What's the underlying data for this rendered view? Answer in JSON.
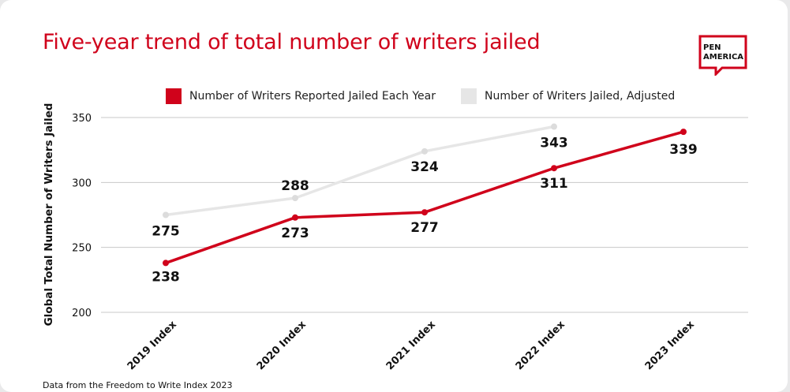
{
  "header": {
    "title": "Five-year trend of total number of writers jailed",
    "logo_text": "PEN\nAMERICA"
  },
  "footer": {
    "source": "Data from the Freedom to Write Index 2023"
  },
  "colors": {
    "reported": "#d0021b",
    "adjusted": "#e6e6e6",
    "grid": "#c8c8c8"
  },
  "chart_data": {
    "type": "line",
    "title": "Five-year trend of total number of writers jailed",
    "ylabel": "Global Total Number of Writers Jailed",
    "xlabel": "",
    "categories": [
      "2019 Index",
      "2020 Index",
      "2021 Index",
      "2022 Index",
      "2023 Index"
    ],
    "ylim": [
      200,
      350
    ],
    "yticks": [
      200,
      250,
      300,
      350
    ],
    "grid": true,
    "legend_position": "top",
    "series": [
      {
        "name": "Number of Writers Reported Jailed Each Year",
        "values": [
          238,
          273,
          277,
          311,
          339
        ],
        "color": "#d0021b"
      },
      {
        "name": "Number of Writers Jailed, Adjusted",
        "values": [
          275,
          288,
          324,
          343,
          null
        ],
        "color": "#e6e6e6"
      }
    ]
  }
}
